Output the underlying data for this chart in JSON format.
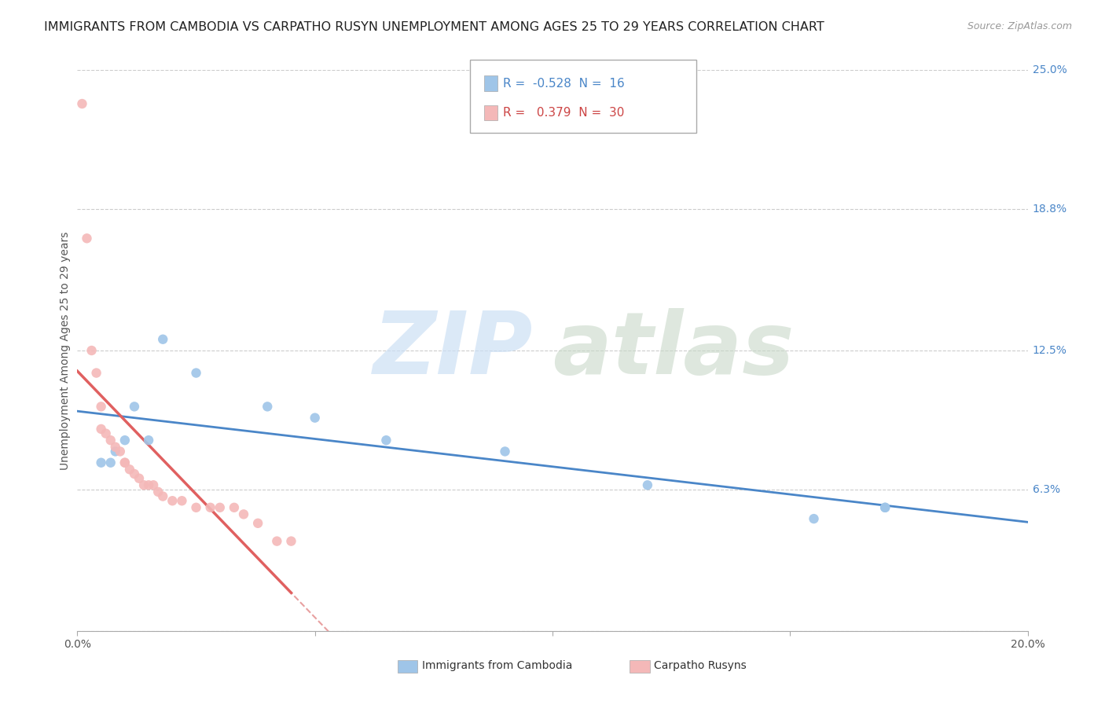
{
  "title": "IMMIGRANTS FROM CAMBODIA VS CARPATHO RUSYN UNEMPLOYMENT AMONG AGES 25 TO 29 YEARS CORRELATION CHART",
  "source": "Source: ZipAtlas.com",
  "ylabel": "Unemployment Among Ages 25 to 29 years",
  "xlim": [
    0.0,
    0.2
  ],
  "ylim": [
    0.0,
    0.25
  ],
  "ytick_vals": [
    0.0,
    0.063,
    0.125,
    0.188,
    0.25
  ],
  "ytick_labels": [
    "",
    "6.3%",
    "12.5%",
    "18.8%",
    "25.0%"
  ],
  "xtick_vals": [
    0.0,
    0.05,
    0.1,
    0.15,
    0.2
  ],
  "xtick_labels": [
    "0.0%",
    "",
    "",
    "",
    "20.0%"
  ],
  "cambodia_R": -0.528,
  "cambodia_N": 16,
  "carpatho_R": 0.379,
  "carpatho_N": 30,
  "cambodia_points": [
    [
      0.005,
      0.075
    ],
    [
      0.007,
      0.075
    ],
    [
      0.008,
      0.08
    ],
    [
      0.01,
      0.085
    ],
    [
      0.012,
      0.1
    ],
    [
      0.015,
      0.085
    ],
    [
      0.018,
      0.13
    ],
    [
      0.025,
      0.115
    ],
    [
      0.04,
      0.1
    ],
    [
      0.05,
      0.095
    ],
    [
      0.065,
      0.085
    ],
    [
      0.09,
      0.08
    ],
    [
      0.12,
      0.065
    ],
    [
      0.155,
      0.05
    ],
    [
      0.17,
      0.055
    ],
    [
      0.17,
      0.055
    ]
  ],
  "carpatho_points": [
    [
      0.001,
      0.235
    ],
    [
      0.002,
      0.175
    ],
    [
      0.003,
      0.125
    ],
    [
      0.004,
      0.115
    ],
    [
      0.005,
      0.1
    ],
    [
      0.005,
      0.09
    ],
    [
      0.006,
      0.088
    ],
    [
      0.007,
      0.085
    ],
    [
      0.008,
      0.082
    ],
    [
      0.009,
      0.08
    ],
    [
      0.01,
      0.075
    ],
    [
      0.01,
      0.075
    ],
    [
      0.011,
      0.072
    ],
    [
      0.012,
      0.07
    ],
    [
      0.013,
      0.068
    ],
    [
      0.014,
      0.065
    ],
    [
      0.015,
      0.065
    ],
    [
      0.016,
      0.065
    ],
    [
      0.017,
      0.062
    ],
    [
      0.018,
      0.06
    ],
    [
      0.02,
      0.058
    ],
    [
      0.022,
      0.058
    ],
    [
      0.025,
      0.055
    ],
    [
      0.028,
      0.055
    ],
    [
      0.03,
      0.055
    ],
    [
      0.033,
      0.055
    ],
    [
      0.035,
      0.052
    ],
    [
      0.038,
      0.048
    ],
    [
      0.042,
      0.04
    ],
    [
      0.045,
      0.04
    ]
  ],
  "cambodia_line_color": "#4a86c8",
  "carpatho_line_solid_color": "#e06060",
  "carpatho_line_dashed_color": "#e8a0a0",
  "dot_color_cambodia": "#9fc5e8",
  "dot_color_carpatho": "#f4b8b8",
  "background_color": "#ffffff",
  "grid_color": "#cccccc",
  "watermark_zip_color": "#cce0f5",
  "watermark_atlas_color": "#c8d8c8",
  "title_fontsize": 11.5,
  "axis_fontsize": 10,
  "legend_fontsize": 11
}
